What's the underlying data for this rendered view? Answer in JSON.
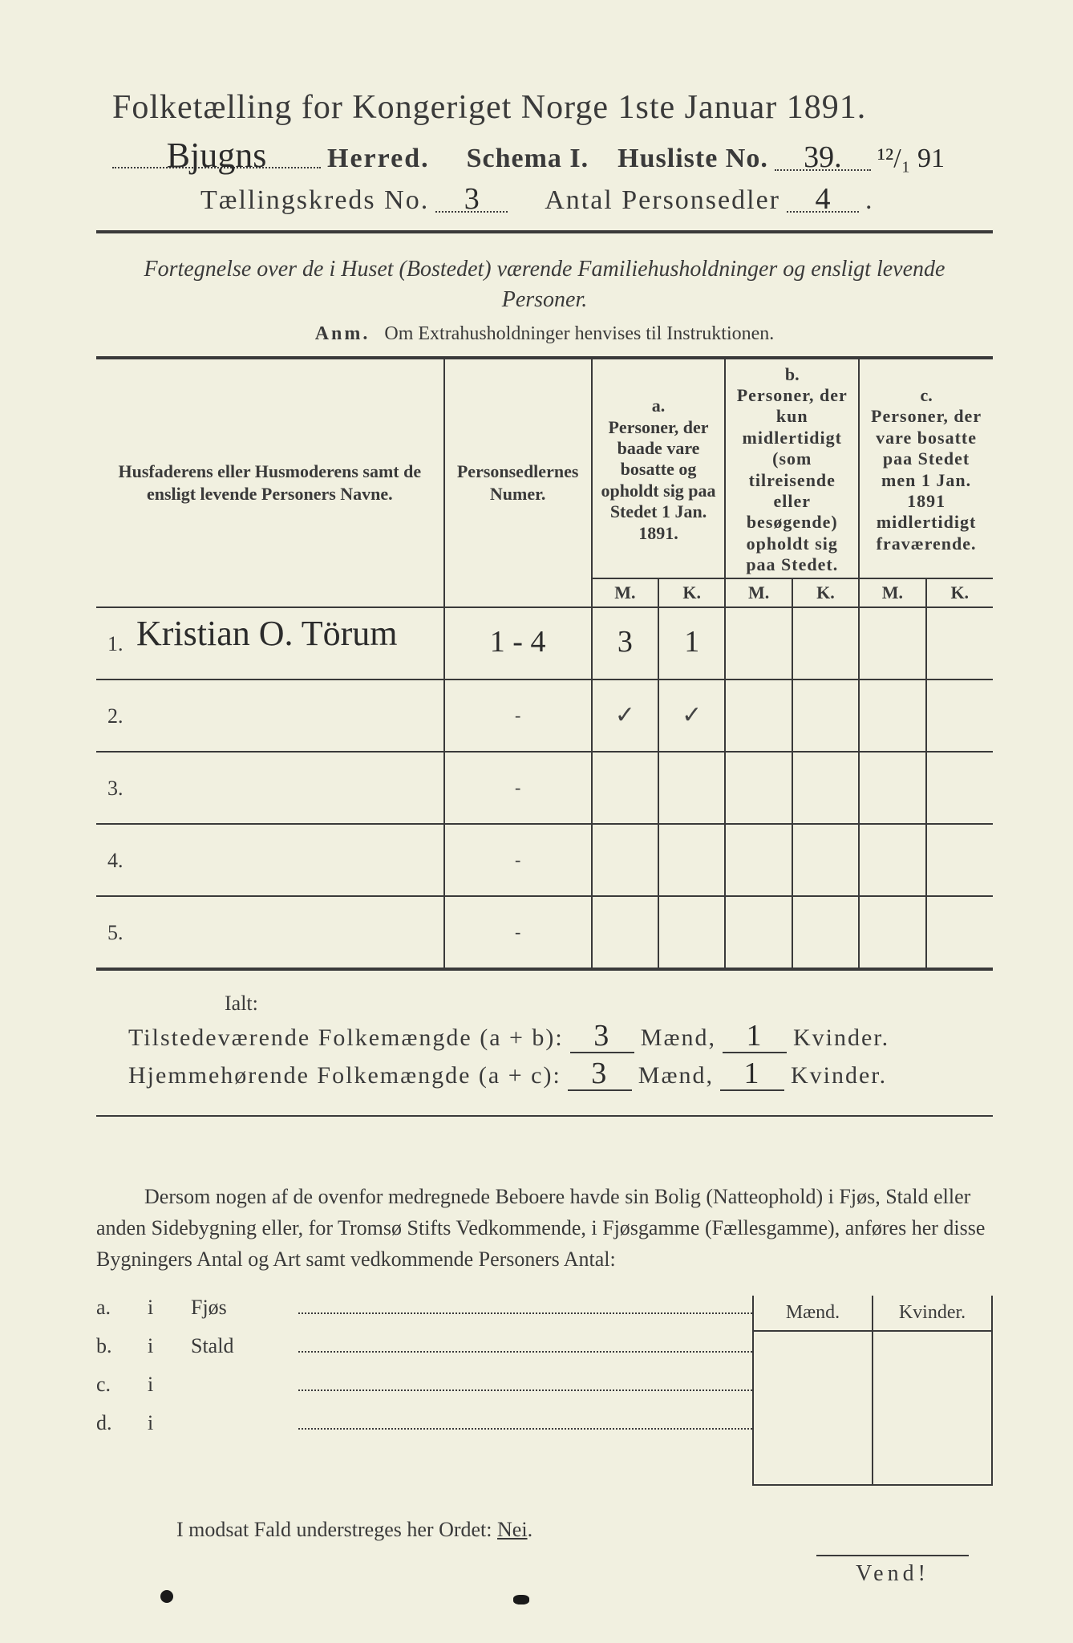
{
  "colors": {
    "paper": "#f1f0e0",
    "ink": "#3a3a3a",
    "handwriting": "#2b2b2b"
  },
  "title": "Folketælling for Kongeriget Norge 1ste Januar 1891.",
  "header": {
    "herred_handwritten": "Bjugns",
    "herred_label": "Herred.",
    "schema_label": "Schema I.",
    "husliste_label": "Husliste No.",
    "husliste_no_handwritten": "39.",
    "date_handwritten": "¹²/₁ 91",
    "kreds_label": "Tællingskreds No.",
    "kreds_no_handwritten": "3",
    "antal_label": "Antal Personsedler",
    "antal_no_handwritten": "4"
  },
  "intro": "Fortegnelse over de i Huset (Bostedet) værende Familiehusholdninger og ensligt levende Personer.",
  "anm_prefix": "Anm.",
  "anm_text": "Om Extrahusholdninger henvises til Instruktionen.",
  "table": {
    "head": {
      "name": "Husfaderens eller Husmoderens samt de ensligt levende Personers Navne.",
      "numer": "Personsedlernes Numer.",
      "a_label": "a.",
      "a_text": "Personer, der baade vare bosatte og opholdt sig paa Stedet 1 Jan. 1891.",
      "b_label": "b.",
      "b_text": "Personer, der kun midlertidigt (som tilreisende eller besøgende) opholdt sig paa Stedet.",
      "c_label": "c.",
      "c_text": "Personer, der vare bosatte paa Stedet men 1 Jan. 1891 midlertidigt fraværende.",
      "m": "M.",
      "k": "K."
    },
    "rows": [
      {
        "no": "1.",
        "name_hw": "Kristian O. Törum",
        "numer_hw": "1 - 4",
        "a_m": "3",
        "a_k": "1",
        "b_m": "",
        "b_k": "",
        "c_m": "",
        "c_k": ""
      },
      {
        "no": "2.",
        "name_hw": "",
        "numer_hw": "-",
        "a_m": "✓",
        "a_k": "✓",
        "b_m": "",
        "b_k": "",
        "c_m": "",
        "c_k": ""
      },
      {
        "no": "3.",
        "name_hw": "",
        "numer_hw": "-",
        "a_m": "",
        "a_k": "",
        "b_m": "",
        "b_k": "",
        "c_m": "",
        "c_k": ""
      },
      {
        "no": "4.",
        "name_hw": "",
        "numer_hw": "-",
        "a_m": "",
        "a_k": "",
        "b_m": "",
        "b_k": "",
        "c_m": "",
        "c_k": ""
      },
      {
        "no": "5.",
        "name_hw": "",
        "numer_hw": "-",
        "a_m": "",
        "a_k": "",
        "b_m": "",
        "b_k": "",
        "c_m": "",
        "c_k": ""
      }
    ]
  },
  "summary": {
    "ialt": "Ialt:",
    "line1_label": "Tilstedeværende Folkemængde (a + b):",
    "line2_label": "Hjemmehørende Folkemængde (a + c):",
    "maend": "Mænd,",
    "kvinder": "Kvinder.",
    "line1_m": "3",
    "line1_k": "1",
    "line2_m": "3",
    "line2_k": "1"
  },
  "paragraph": "Dersom nogen af de ovenfor medregnede Beboere havde sin Bolig (Natteophold) i Fjøs, Stald eller anden Sidebygning eller, for Tromsø Stifts Vedkommende, i Fjøsgamme (Fællesgamme), anføres her disse Bygningers Antal og Art samt vedkommende Personers Antal:",
  "lower": {
    "maend": "Mænd.",
    "kvinder": "Kvinder.",
    "rows": [
      {
        "letter": "a.",
        "i": "i",
        "label": "Fjøs"
      },
      {
        "letter": "b.",
        "i": "i",
        "label": "Stald"
      },
      {
        "letter": "c.",
        "i": "i",
        "label": ""
      },
      {
        "letter": "d.",
        "i": "i",
        "label": ""
      }
    ]
  },
  "nei_line_prefix": "I modsat Fald understreges her Ordet: ",
  "nei_word": "Nei",
  "nei_period": ".",
  "vend": "Vend!"
}
